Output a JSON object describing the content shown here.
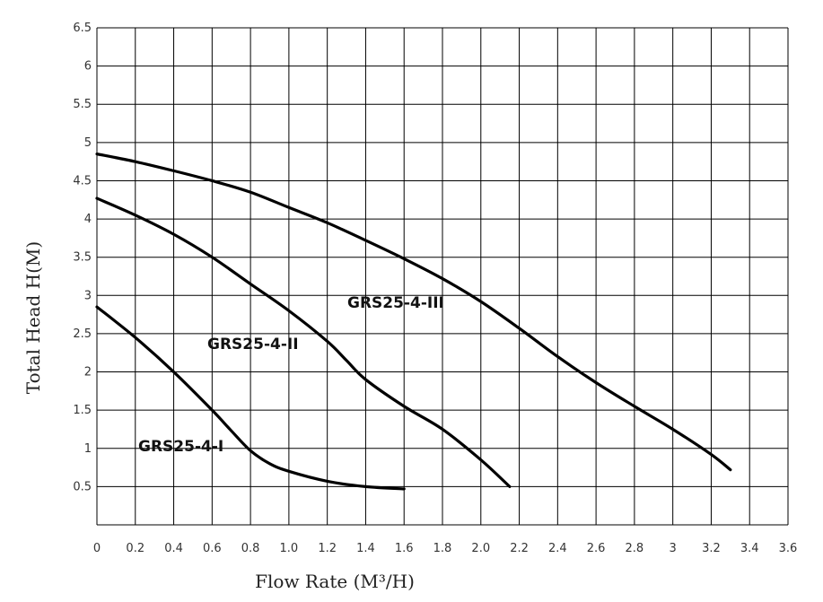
{
  "chart_data": {
    "type": "line",
    "xlabel": "Flow Rate (M³/H)",
    "ylabel": "Total Head H(M)",
    "xlim": [
      0,
      3.6
    ],
    "ylim": [
      0,
      6.5
    ],
    "grid": true,
    "x_ticks": [
      "0",
      "0.2",
      "0.4",
      "0.6",
      "0.8",
      "1.0",
      "1.2",
      "1.4",
      "1.6",
      "1.8",
      "2.0",
      "2.2",
      "2.4",
      "2.6",
      "2.8",
      "3",
      "3.2",
      "3.4",
      "3.6"
    ],
    "y_ticks": [
      "0.5",
      "1",
      "1.5",
      "2",
      "2.5",
      "3",
      "3.5",
      "4",
      "4.5",
      "5",
      "5.5",
      "6",
      "6.5"
    ],
    "series": [
      {
        "name": "GRS25-4-I",
        "x": [
          0,
          0.2,
          0.4,
          0.6,
          0.7,
          0.8,
          0.9,
          1.0,
          1.2,
          1.4,
          1.6
        ],
        "y": [
          2.85,
          2.45,
          2.0,
          1.5,
          1.23,
          0.97,
          0.8,
          0.7,
          0.57,
          0.5,
          0.47
        ]
      },
      {
        "name": "GRS25-4-II",
        "x": [
          0,
          0.2,
          0.4,
          0.6,
          0.8,
          1.0,
          1.2,
          1.3,
          1.4,
          1.6,
          1.8,
          2.0,
          2.15
        ],
        "y": [
          4.27,
          4.05,
          3.8,
          3.5,
          3.15,
          2.8,
          2.4,
          2.15,
          1.9,
          1.55,
          1.25,
          0.85,
          0.5
        ]
      },
      {
        "name": "GRS25-4-III",
        "x": [
          0,
          0.2,
          0.4,
          0.6,
          0.8,
          1.0,
          1.2,
          1.4,
          1.6,
          1.8,
          2.0,
          2.2,
          2.4,
          2.6,
          2.8,
          3.0,
          3.2,
          3.3
        ],
        "y": [
          4.85,
          4.75,
          4.63,
          4.5,
          4.35,
          4.15,
          3.95,
          3.72,
          3.48,
          3.22,
          2.92,
          2.57,
          2.2,
          1.86,
          1.55,
          1.25,
          0.92,
          0.72
        ]
      }
    ],
    "annotations": [
      "GRS25-4-I",
      "GRS25-4-II",
      "GRS25-4-III"
    ]
  }
}
